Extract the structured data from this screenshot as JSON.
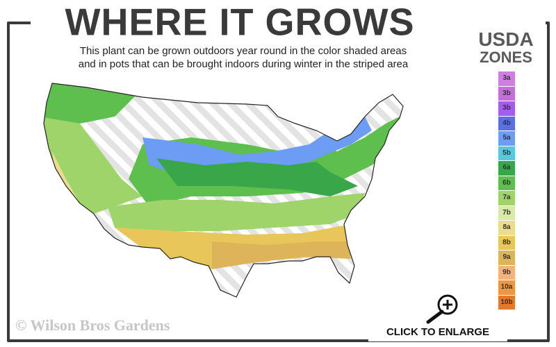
{
  "header": {
    "title": "WHERE IT GROWS",
    "subtitle_line1": "This plant can be grown outdoors year round in the color shaded areas",
    "subtitle_line2": "and in pots that can be brought indoors during winter in the striped area"
  },
  "legend": {
    "title_line1": "USDA",
    "title_line2": "ZONES",
    "zones": [
      {
        "label": "3a",
        "color": "#d07fe0"
      },
      {
        "label": "3b",
        "color": "#c46fd8"
      },
      {
        "label": "3b",
        "color": "#a35bf0"
      },
      {
        "label": "4b",
        "color": "#5a6fe6"
      },
      {
        "label": "5a",
        "color": "#6d9cf5"
      },
      {
        "label": "5b",
        "color": "#5ac6e0"
      },
      {
        "label": "6a",
        "color": "#3aa64a"
      },
      {
        "label": "6b",
        "color": "#5fbf4e"
      },
      {
        "label": "7a",
        "color": "#9fd46a"
      },
      {
        "label": "7b",
        "color": "#d9eaa8"
      },
      {
        "label": "8a",
        "color": "#ecdc90"
      },
      {
        "label": "8b",
        "color": "#e8c65a"
      },
      {
        "label": "9a",
        "color": "#ddb45a"
      },
      {
        "label": "9b",
        "color": "#f2b47e"
      },
      {
        "label": "10a",
        "color": "#ee9640"
      },
      {
        "label": "10b",
        "color": "#e3782e"
      }
    ]
  },
  "footer": {
    "copyright": "© Wilson Bros Gardens",
    "enlarge_label": "CLICK TO ENLARGE",
    "enlarge_icon": "magnifier-plus-icon"
  }
}
